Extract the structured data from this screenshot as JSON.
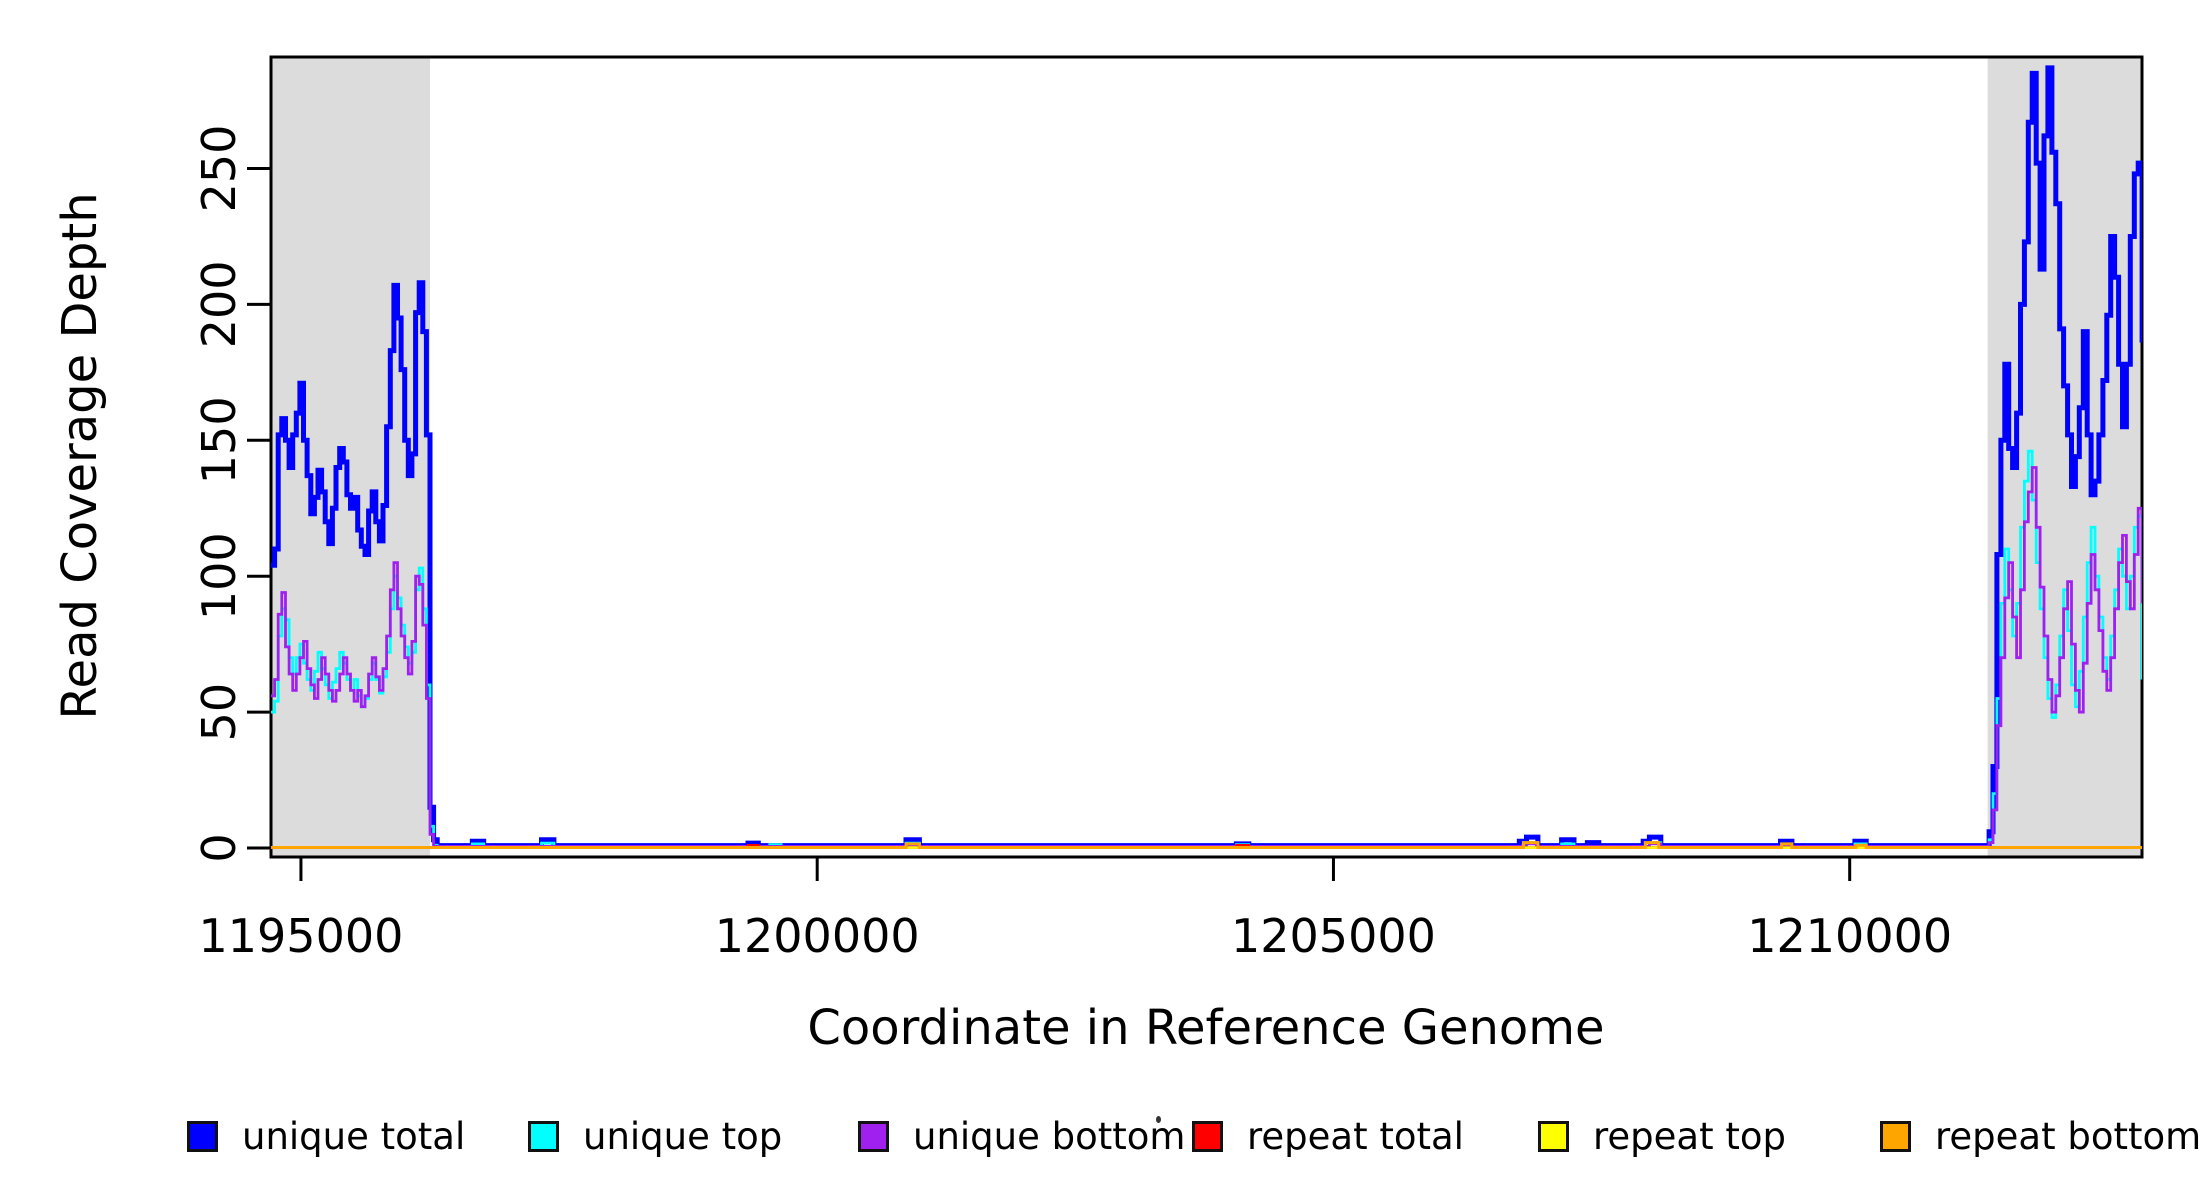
{
  "chart_data": {
    "type": "line",
    "subtype": "step-coverage",
    "title": "",
    "xlabel": "Coordinate in Reference Genome",
    "ylabel": "Read Coverage Depth",
    "xlim": [
      1194710,
      1212831
    ],
    "ylim": [
      0,
      291
    ],
    "grid": false,
    "legend_position": "bottom-horizontal",
    "x_ticks": [
      {
        "v": 1195000,
        "label": "1195000"
      },
      {
        "v": 1200000,
        "label": "1200000"
      },
      {
        "v": 1205000,
        "label": "1205000"
      },
      {
        "v": 1210000,
        "label": "1210000"
      }
    ],
    "y_ticks": [
      {
        "v": 0,
        "label": "0"
      },
      {
        "v": 50,
        "label": "50"
      },
      {
        "v": 100,
        "label": "100"
      },
      {
        "v": 150,
        "label": "150"
      },
      {
        "v": 200,
        "label": "200"
      },
      {
        "v": 250,
        "label": "250"
      }
    ],
    "shaded_regions": [
      {
        "x0": 1194710,
        "x1": 1196250,
        "color": "#DCDCDC"
      },
      {
        "x0": 1211336,
        "x1": 1212831,
        "color": "#DCDCDC"
      }
    ],
    "axis_color": "#000000",
    "series": [
      {
        "name": "unique total",
        "color": "#0000FF",
        "width": 5,
        "segments": [
          {
            "start": 1194710,
            "step": 35,
            "values": [
              104,
              110,
              152,
              158,
              150,
              140,
              152,
              160,
              171,
              150,
              137,
              123,
              129,
              139,
              131,
              120,
              112,
              125,
              140,
              147,
              142,
              130,
              125,
              129,
              117,
              111,
              108,
              124,
              131,
              120,
              113,
              126,
              155,
              183,
              207,
              195,
              176,
              150,
              137,
              145,
              197,
              208,
              190,
              152
            ]
          },
          {
            "pairs": [
              [
                1196250,
                15
              ],
              [
                1196285,
                3
              ],
              [
                1196320,
                0.9
              ],
              [
                1196660,
                2.5
              ],
              [
                1196770,
                0.9
              ],
              [
                1197330,
                3
              ],
              [
                1197450,
                0.9
              ],
              [
                1199330,
                1.8
              ],
              [
                1199430,
                0.9
              ],
              [
                1200860,
                3
              ],
              [
                1200990,
                0.9
              ],
              [
                1204060,
                1.5
              ],
              [
                1204180,
                0.9
              ],
              [
                1206800,
                2.5
              ],
              [
                1206870,
                4
              ],
              [
                1206980,
                0.9
              ],
              [
                1207210,
                3
              ],
              [
                1207330,
                0.9
              ],
              [
                1207460,
                2
              ],
              [
                1207570,
                0.9
              ],
              [
                1208000,
                2.5
              ],
              [
                1208060,
                4
              ],
              [
                1208170,
                0.9
              ],
              [
                1209330,
                2.5
              ],
              [
                1209440,
                0.9
              ],
              [
                1210050,
                2.5
              ],
              [
                1210160,
                0.9
              ]
            ]
          },
          {
            "start": 1211350,
            "step": 38,
            "values": [
              6,
              30,
              108,
              150,
              178,
              147,
              140,
              160,
              200,
              223,
              267,
              285,
              252,
              213,
              262,
              287,
              256,
              237,
              191,
              170,
              152,
              133,
              144,
              162,
              190,
              152,
              130,
              135,
              152,
              172,
              196,
              225,
              210,
              178,
              155,
              178,
              225,
              248,
              252,
              186
            ]
          }
        ]
      },
      {
        "name": "unique top",
        "color": "#00FFFF",
        "width": 2.8,
        "segments": [
          {
            "start": 1194710,
            "step": 35,
            "values": [
              50,
              54,
              78,
              88,
              84,
              70,
              64,
              70,
              75,
              68,
              62,
              58,
              65,
              72,
              66,
              60,
              55,
              61,
              66,
              72,
              68,
              62,
              58,
              62,
              56,
              52,
              55,
              62,
              68,
              62,
              57,
              63,
              72,
              88,
              100,
              92,
              82,
              74,
              68,
              72,
              95,
              103,
              88,
              60
            ]
          },
          {
            "pairs": [
              [
                1196250,
                8
              ],
              [
                1196285,
                1
              ],
              [
                1196320,
                0.5
              ],
              [
                1196660,
                1.5
              ],
              [
                1196770,
                0.5
              ],
              [
                1197330,
                1.8
              ],
              [
                1197450,
                0.5
              ],
              [
                1199540,
                1.2
              ],
              [
                1199650,
                0.5
              ],
              [
                1200860,
                1.8
              ],
              [
                1200990,
                0.5
              ],
              [
                1204060,
                1.2
              ],
              [
                1204180,
                0.5
              ],
              [
                1206870,
                2
              ],
              [
                1206980,
                0.5
              ],
              [
                1207210,
                1.5
              ],
              [
                1207330,
                0.5
              ],
              [
                1208060,
                2
              ],
              [
                1208170,
                0.5
              ],
              [
                1210050,
                1.5
              ],
              [
                1210160,
                0.5
              ]
            ]
          },
          {
            "start": 1211350,
            "step": 38,
            "values": [
              3,
              20,
              55,
              90,
              110,
              95,
              78,
              90,
              118,
              135,
              146,
              128,
              105,
              88,
              70,
              55,
              48,
              60,
              78,
              95,
              80,
              60,
              52,
              65,
              85,
              105,
              118,
              100,
              85,
              70,
              62,
              78,
              95,
              110,
              100,
              88,
              100,
              118,
              122,
              62
            ]
          }
        ]
      },
      {
        "name": "unique bottom",
        "color": "#A020F0",
        "width": 2.8,
        "segments": [
          {
            "start": 1194710,
            "step": 35,
            "values": [
              56,
              62,
              86,
              94,
              74,
              64,
              58,
              64,
              70,
              76,
              66,
              60,
              55,
              62,
              70,
              64,
              58,
              54,
              58,
              64,
              70,
              64,
              58,
              54,
              58,
              52,
              56,
              64,
              70,
              63,
              58,
              66,
              78,
              95,
              105,
              88,
              78,
              70,
              64,
              76,
              100,
              97,
              82,
              55
            ]
          },
          {
            "pairs": [
              [
                1196250,
                5
              ],
              [
                1196285,
                0.6
              ],
              [
                1200860,
                1.2
              ],
              [
                1200990,
                0.6
              ],
              [
                1206870,
                1.5
              ],
              [
                1206980,
                0.6
              ],
              [
                1208060,
                1.5
              ],
              [
                1208170,
                0.6
              ]
            ]
          },
          {
            "start": 1211350,
            "step": 38,
            "values": [
              2,
              14,
              45,
              70,
              92,
              105,
              85,
              70,
              95,
              120,
              131,
              140,
              118,
              96,
              78,
              62,
              50,
              56,
              70,
              88,
              98,
              75,
              58,
              50,
              68,
              90,
              108,
              95,
              80,
              65,
              58,
              70,
              88,
              105,
              115,
              98,
              88,
              108,
              125,
              90
            ]
          }
        ]
      },
      {
        "name": "repeat total",
        "color": "#FF0000",
        "width": 2.5,
        "segments": [
          {
            "pairs": [
              [
                1194710,
                0.2
              ],
              [
                1199330,
                1
              ],
              [
                1199430,
                0.2
              ],
              [
                1204060,
                1
              ],
              [
                1204180,
                0.2
              ]
            ]
          }
        ]
      },
      {
        "name": "repeat top",
        "color": "#FFFF00",
        "width": 2.5,
        "segments": [
          {
            "pairs": [
              [
                1194710,
                0.15
              ]
            ]
          }
        ]
      },
      {
        "name": "repeat bottom",
        "color": "#FFA500",
        "width": 3,
        "segments": [
          {
            "pairs": [
              [
                1194710,
                0.2
              ],
              [
                1200860,
                1.5
              ],
              [
                1200990,
                0.2
              ],
              [
                1206840,
                2
              ],
              [
                1206980,
                0.2
              ],
              [
                1208020,
                2
              ],
              [
                1208150,
                0.2
              ],
              [
                1209340,
                1.5
              ],
              [
                1209440,
                0.2
              ],
              [
                1210060,
                1
              ],
              [
                1210160,
                0.2
              ]
            ]
          }
        ]
      }
    ],
    "legend": {
      "items": [
        {
          "label": "unique total",
          "color": "#0000FF"
        },
        {
          "label": "unique top",
          "color": "#00FFFF"
        },
        {
          "label": "unique bottom",
          "color": "#A020F0"
        },
        {
          "label": "repeat total",
          "color": "#FF0000"
        },
        {
          "label": "repeat top",
          "color": "#FFFF00"
        },
        {
          "label": "repeat bottom",
          "color": "#FFA500"
        }
      ]
    }
  }
}
